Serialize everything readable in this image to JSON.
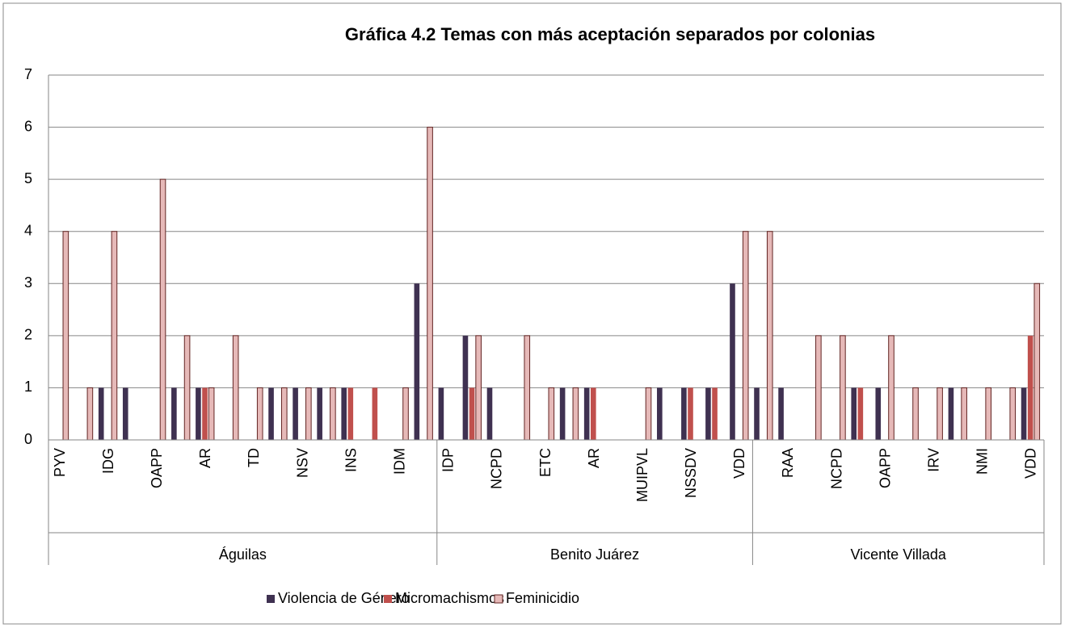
{
  "chart_data": {
    "type": "bar",
    "title": "Gráfica 4.2  Temas con más aceptación separados por colonias",
    "groups": [
      {
        "name": "Águilas",
        "categories": [
          "PYV",
          null,
          "IDG",
          null,
          "OAPP",
          null,
          "AR",
          null,
          "TD",
          null,
          "NSV",
          null,
          "INS",
          null,
          "IDM",
          null
        ]
      },
      {
        "name": "Benito Juárez",
        "categories": [
          "IDP",
          null,
          "NCPD",
          null,
          "ETC",
          null,
          "AR",
          null,
          "MUIPVL",
          null,
          "NSSDV",
          null,
          "VDD"
        ]
      },
      {
        "name": "Vicente Villada",
        "categories": [
          null,
          "RAA",
          null,
          "NCPD",
          null,
          "OAPP",
          null,
          "IRV",
          null,
          "NMI",
          null,
          "VDD"
        ]
      }
    ],
    "series": [
      {
        "name": "Violencia de Género",
        "color": "#3f3151",
        "values": [
          0,
          0,
          1,
          1,
          0,
          1,
          1,
          0,
          0,
          1,
          1,
          1,
          1,
          0,
          0,
          3,
          1,
          2,
          1,
          0,
          0,
          1,
          1,
          0,
          0,
          1,
          1,
          1,
          3,
          1,
          1,
          0,
          0,
          1,
          1,
          0,
          0,
          1,
          0,
          0,
          1
        ]
      },
      {
        "name": "Micromachismos",
        "color": "#c0504d",
        "values": [
          0,
          0,
          0,
          0,
          0,
          0,
          1,
          0,
          0,
          0,
          0,
          0,
          1,
          1,
          0,
          0,
          0,
          1,
          0,
          0,
          0,
          0,
          1,
          0,
          0,
          0,
          1,
          1,
          0,
          0,
          0,
          0,
          0,
          1,
          0,
          0,
          0,
          0,
          0,
          0,
          2
        ]
      },
      {
        "name": "Feminicidio",
        "color": "#e6b9b8",
        "values": [
          4,
          1,
          4,
          0,
          5,
          2,
          1,
          2,
          1,
          1,
          1,
          1,
          0,
          0,
          1,
          6,
          0,
          2,
          0,
          2,
          1,
          1,
          0,
          0,
          1,
          0,
          0,
          0,
          4,
          4,
          0,
          2,
          2,
          0,
          2,
          1,
          1,
          1,
          1,
          1,
          3
        ]
      }
    ],
    "ylim": [
      0,
      7
    ],
    "yticks": [
      0,
      1,
      2,
      3,
      4,
      5,
      6,
      7
    ],
    "grid": true,
    "legend": "bottom"
  }
}
